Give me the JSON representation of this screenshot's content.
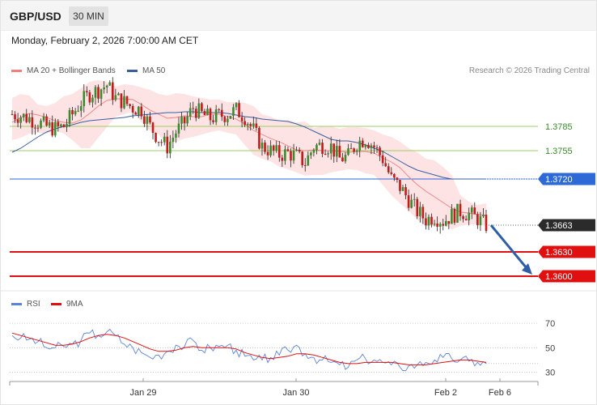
{
  "header": {
    "symbol": "GBP/USD",
    "timeframe": "30 MIN"
  },
  "datetime": "Monday, February 2, 2026 7:00:00 AM CET",
  "legend": {
    "ma20_label": "MA 20 + Bollinger Bands",
    "ma50_label": "MA 50",
    "rsi_label": "RSI",
    "rsi_ma_label": "9MA"
  },
  "credit": "Research © 2026 Trading Central",
  "colors": {
    "ma20": "#f08080",
    "bollinger_fill": "#fde3e3",
    "ma50": "#3a5f9f",
    "support_line": "#e01010",
    "pivot_line": "#2d6ad8",
    "resistance_line": "#9bcf5f",
    "candle_up": "#3c8a2e",
    "candle_down": "#c41a1a",
    "rsi": "#5b84d6",
    "rsi_ma": "#e01010",
    "arrow": "#2e5fa6"
  },
  "chart_data": [
    {
      "type": "candlestick",
      "name": "price",
      "x_ticks": [
        "Jan 29",
        "Jan 30",
        "Feb 2",
        "Feb 6"
      ],
      "ylim": [
        1.3585,
        1.3845
      ],
      "grid": false,
      "levels": [
        {
          "value": 1.3785,
          "label": "1.3785",
          "kind": "resistance"
        },
        {
          "value": 1.3755,
          "label": "1.3755",
          "kind": "resistance"
        },
        {
          "value": 1.372,
          "label": "1.3720",
          "kind": "pivot"
        },
        {
          "value": 1.3663,
          "label": "1.3663",
          "kind": "last_price"
        },
        {
          "value": 1.363,
          "label": "1.3630",
          "kind": "support"
        },
        {
          "value": 1.36,
          "label": "1.3600",
          "kind": "support"
        }
      ],
      "arrow": {
        "from": 1.3663,
        "to": 1.36,
        "direction": "down"
      },
      "close_path": [
        1.38,
        1.3798,
        1.3795,
        1.379,
        1.3785,
        1.3782,
        1.3785,
        1.38,
        1.3815,
        1.3825,
        1.383,
        1.3836,
        1.382,
        1.3815,
        1.3808,
        1.3806,
        1.3785,
        1.377,
        1.376,
        1.3778,
        1.379,
        1.3808,
        1.38,
        1.3795,
        1.3798,
        1.38,
        1.3805,
        1.3797,
        1.378,
        1.376,
        1.3755,
        1.375,
        1.3752,
        1.3748,
        1.374,
        1.376,
        1.3762,
        1.376,
        1.3745,
        1.3748,
        1.3765,
        1.377,
        1.376,
        1.3745,
        1.372,
        1.371,
        1.3695,
        1.368,
        1.367,
        1.3674,
        1.3668,
        1.3675,
        1.368,
        1.3677,
        1.3671,
        1.3663
      ],
      "ma20": [
        1.379,
        1.3796,
        1.3801,
        1.3799,
        1.3796,
        1.3792,
        1.379,
        1.3789,
        1.3793,
        1.3801,
        1.381,
        1.3817,
        1.3819,
        1.3819,
        1.3818,
        1.3812,
        1.3805,
        1.38,
        1.3795,
        1.3796,
        1.3798,
        1.3797,
        1.3797,
        1.38,
        1.38,
        1.3797,
        1.3794,
        1.3788,
        1.378,
        1.3775,
        1.377,
        1.3766,
        1.3761,
        1.3756,
        1.3755,
        1.3756,
        1.3755,
        1.3755,
        1.3754,
        1.3753,
        1.3754,
        1.3754,
        1.3752,
        1.3746,
        1.3741,
        1.3734,
        1.3723,
        1.3713,
        1.3705,
        1.3698,
        1.3691,
        1.3684,
        1.3679,
        1.3678,
        1.3676,
        1.3675
      ],
      "ma50": [
        1.3753,
        1.3758,
        1.3765,
        1.3772,
        1.3778,
        1.3782,
        1.3785,
        1.3787,
        1.379,
        1.3792,
        1.3793,
        1.3794,
        1.3795,
        1.3796,
        1.3798,
        1.3799,
        1.38,
        1.3801,
        1.3802,
        1.3802,
        1.3803,
        1.3803,
        1.3802,
        1.3802,
        1.3802,
        1.3801,
        1.3799,
        1.3797,
        1.3796,
        1.3794,
        1.3793,
        1.3792,
        1.3791,
        1.3788,
        1.3784,
        1.3779,
        1.3774,
        1.3769,
        1.3767,
        1.3767,
        1.3765,
        1.3762,
        1.3758,
        1.3754,
        1.3748,
        1.3742,
        1.3736,
        1.3731,
        1.3728,
        1.3725,
        1.3722,
        1.372,
        1.372,
        1.372,
        1.372,
        1.372
      ],
      "bb_upper": [
        1.382,
        1.3825,
        1.3823,
        1.3812,
        1.381,
        1.3814,
        1.3822,
        1.3825,
        1.3832,
        1.384,
        1.3842,
        1.384,
        1.3834,
        1.3837,
        1.3836,
        1.3833,
        1.383,
        1.3825,
        1.3823,
        1.3826,
        1.3825,
        1.3822,
        1.382,
        1.3818,
        1.3818,
        1.3815,
        1.3815,
        1.3814,
        1.381,
        1.38,
        1.3797,
        1.3792,
        1.3793,
        1.379,
        1.3791,
        1.3783,
        1.3785,
        1.3785,
        1.3782,
        1.3784,
        1.3784,
        1.3783,
        1.378,
        1.3775,
        1.3772,
        1.3766,
        1.3758,
        1.3753,
        1.3745,
        1.3743,
        1.3735,
        1.3725,
        1.37,
        1.3692,
        1.3688,
        1.369
      ],
      "bb_lower": [
        1.3768,
        1.3771,
        1.3776,
        1.3777,
        1.3776,
        1.378,
        1.3776,
        1.3768,
        1.3758,
        1.3758,
        1.3771,
        1.3784,
        1.3797,
        1.38,
        1.3803,
        1.379,
        1.378,
        1.3775,
        1.3762,
        1.3766,
        1.377,
        1.3772,
        1.3775,
        1.3778,
        1.378,
        1.3777,
        1.3775,
        1.3762,
        1.375,
        1.3745,
        1.3742,
        1.3735,
        1.3732,
        1.3728,
        1.3724,
        1.3725,
        1.3725,
        1.3728,
        1.373,
        1.3732,
        1.3731,
        1.3727,
        1.3725,
        1.3713,
        1.37,
        1.369,
        1.3681,
        1.367,
        1.3662,
        1.3662,
        1.3664,
        1.3658,
        1.3662,
        1.3664,
        1.3664,
        1.3662
      ]
    },
    {
      "type": "line",
      "name": "rsi",
      "ylim": [
        25,
        78
      ],
      "y_ticks": [
        30,
        50,
        70
      ],
      "series": [
        {
          "name": "RSI",
          "values": [
            60,
            58,
            57,
            55,
            50,
            50,
            51,
            53,
            56,
            62,
            60,
            63,
            60,
            53,
            50,
            46,
            42,
            44,
            47,
            52,
            51,
            56,
            48,
            50,
            51,
            52,
            48,
            43,
            40,
            40,
            42,
            44,
            48,
            52,
            45,
            42,
            40,
            38,
            36,
            34,
            40,
            41,
            40,
            38,
            36,
            34,
            35,
            36,
            38,
            40,
            42,
            41,
            40,
            39,
            38,
            37
          ]
        },
        {
          "name": "9MA",
          "values": [
            62,
            60,
            58,
            56,
            54,
            52,
            52,
            53,
            55,
            58,
            60,
            61,
            60,
            58,
            55,
            52,
            49,
            47,
            47,
            48,
            50,
            51,
            50,
            50,
            50,
            50,
            49,
            46,
            44,
            42,
            41,
            42,
            43,
            45,
            45,
            44,
            42,
            40,
            38,
            37,
            37,
            38,
            38,
            38,
            38,
            37,
            36,
            36,
            36,
            37,
            38,
            39,
            40,
            40,
            39,
            38
          ]
        }
      ]
    }
  ]
}
